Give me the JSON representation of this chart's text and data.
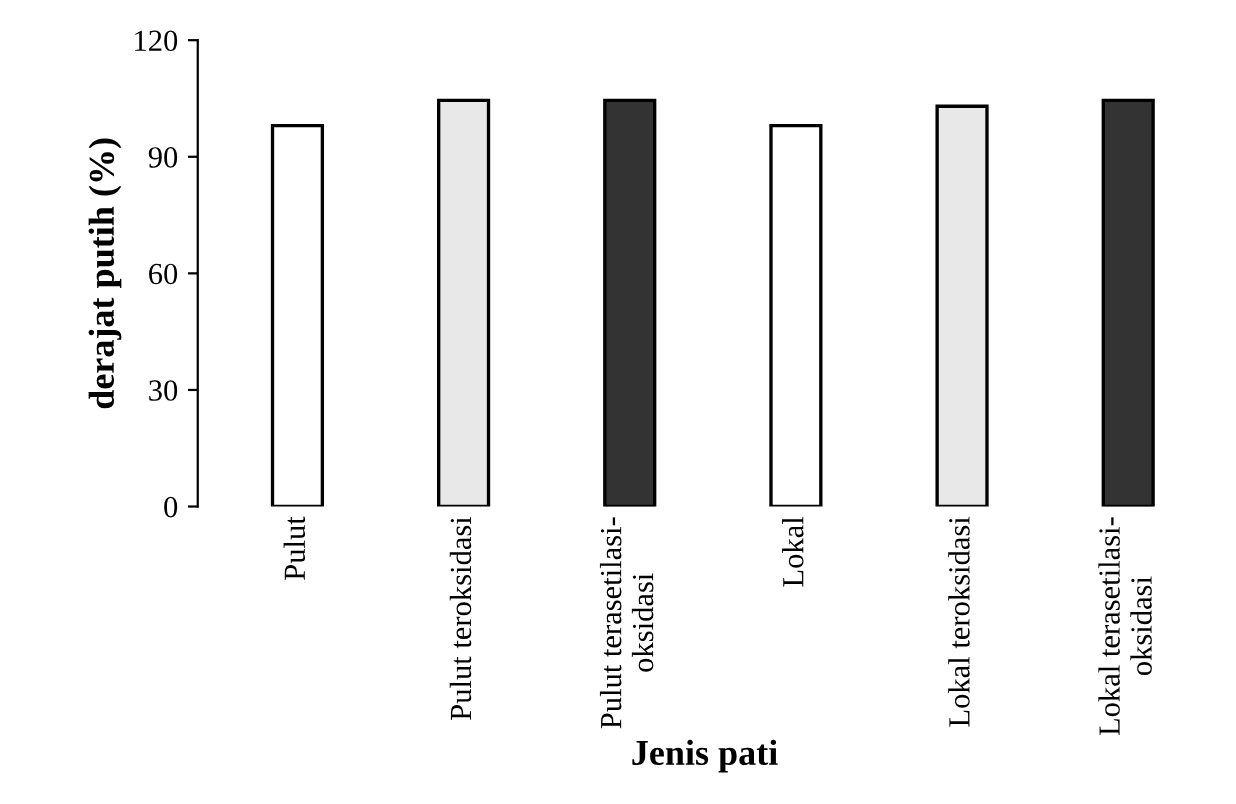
{
  "chart_data": {
    "type": "bar",
    "xlabel": "Jenis pati",
    "ylabel": "derajat putih (%)",
    "categories": [
      "Pulut",
      "Pulut teroksidasi",
      "Pulut terasetilasi-\noksidasi",
      "Lokal",
      "Lokal teroksidasi",
      "Lokal terasetilasi-\noksidasi"
    ],
    "values": [
      98,
      104.5,
      104.5,
      98,
      103,
      104.5
    ],
    "colors": [
      "#ffffff",
      "#e8e8e8",
      "#333333",
      "#ffffff",
      "#e8e8e8",
      "#333333"
    ],
    "ylim": [
      0,
      120
    ],
    "yticks": [
      0,
      30,
      60,
      90,
      120
    ],
    "grid": false,
    "legend": false
  }
}
